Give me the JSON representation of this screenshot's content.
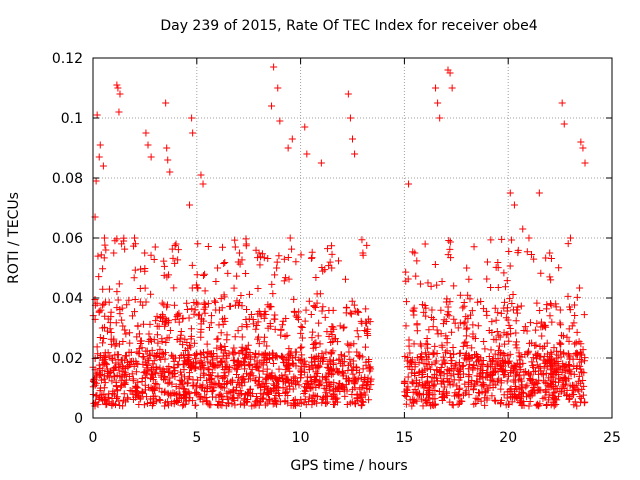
{
  "chart_data": {
    "type": "scatter",
    "title": "Day 239 of 2015, Rate Of TEC Index for receiver obe4",
    "xlabel": "GPS time / hours",
    "ylabel": "ROTI / TECUs",
    "xlim": [
      0,
      25
    ],
    "ylim": [
      0,
      0.12
    ],
    "xticks": [
      0,
      5,
      10,
      15,
      20,
      25
    ],
    "yticks": [
      0,
      0.02,
      0.04,
      0.06,
      0.08,
      0.1,
      0.12
    ],
    "xtick_labels": [
      "0",
      "5",
      "10",
      "15",
      "20",
      "25"
    ],
    "ytick_labels": [
      "0",
      "0.02",
      "0.04",
      "0.06",
      "0.08",
      "0.1",
      "0.12"
    ],
    "grid": true,
    "marker": "+",
    "color": "#ff0000",
    "data_gap_hours": [
      13.4,
      15.0
    ],
    "series": [
      {
        "name": "ROTI",
        "x": [
          0.1,
          0.15,
          0.2,
          0.3,
          0.35,
          0.5,
          0.55,
          1.15,
          1.2,
          1.25,
          1.3,
          2.55,
          2.65,
          2.8,
          3.5,
          3.55,
          3.6,
          3.7,
          4.65,
          4.75,
          4.8,
          5.2,
          5.3,
          8.6,
          8.7,
          8.9,
          9.0,
          9.4,
          9.6,
          10.2,
          10.3,
          11.0,
          12.3,
          12.4,
          12.5,
          12.6,
          15.2,
          16.5,
          16.6,
          16.7,
          17.1,
          17.2,
          17.3,
          20.1,
          20.3,
          20.7,
          21.5,
          22.6,
          22.7,
          23.5,
          23.6,
          23.7,
          1.0,
          2.0,
          3.0,
          4.0,
          6.0,
          7.0,
          8.0,
          9.5,
          11.5,
          13.0,
          15.5,
          16.0,
          18.0,
          19.0,
          21.0,
          22.0,
          23.0
        ],
        "y": [
          0.067,
          0.079,
          0.101,
          0.087,
          0.091,
          0.084,
          0.06,
          0.111,
          0.11,
          0.102,
          0.108,
          0.095,
          0.091,
          0.087,
          0.105,
          0.09,
          0.086,
          0.082,
          0.071,
          0.1,
          0.095,
          0.081,
          0.078,
          0.104,
          0.117,
          0.11,
          0.099,
          0.09,
          0.093,
          0.097,
          0.088,
          0.085,
          0.108,
          0.1,
          0.093,
          0.088,
          0.078,
          0.11,
          0.105,
          0.1,
          0.116,
          0.115,
          0.11,
          0.075,
          0.071,
          0.063,
          0.075,
          0.105,
          0.098,
          0.092,
          0.09,
          0.085,
          0.055,
          0.06,
          0.057,
          0.058,
          0.05,
          0.052,
          0.055,
          0.06,
          0.05,
          0.055,
          0.055,
          0.058,
          0.05,
          0.052,
          0.06,
          0.055,
          0.06
        ]
      }
    ]
  }
}
